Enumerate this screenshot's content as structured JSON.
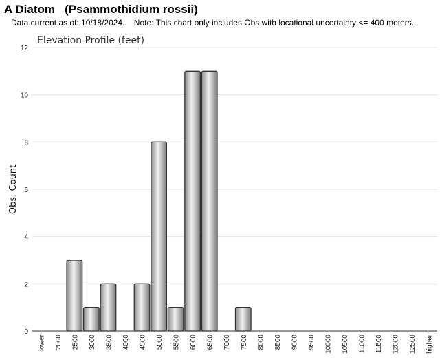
{
  "header": {
    "title": "A Diatom   (Psammothidium rossii)",
    "subtitle": "Data current as of: 10/18/2024.    Note: This chart only includes Obs with locational uncertainty <= 400 meters."
  },
  "chart_data": {
    "type": "bar",
    "title": "Elevation Profile (feet)",
    "xlabel": "",
    "ylabel": "Obs. Count",
    "categories": [
      "lower",
      "2000",
      "2500",
      "3000",
      "3500",
      "4000",
      "4500",
      "5000",
      "5500",
      "6000",
      "6500",
      "7000",
      "7500",
      "8000",
      "8500",
      "9000",
      "9500",
      "10000",
      "10500",
      "11000",
      "11500",
      "12000",
      "12500",
      "higher"
    ],
    "values": [
      0,
      0,
      3,
      1,
      2,
      0,
      2,
      8,
      1,
      11,
      11,
      0,
      1,
      0,
      0,
      0,
      0,
      0,
      0,
      0,
      0,
      0,
      0,
      0
    ],
    "ylim": [
      0,
      12
    ],
    "yticks": [
      0,
      2,
      4,
      6,
      8,
      10,
      12
    ],
    "grid": true,
    "colors": {
      "bar_edge": "#333333",
      "bar_light": "#f2f2f2",
      "bar_dark": "#8a8a8a",
      "grid": "#e3e3e3",
      "axis": "#333333"
    }
  }
}
